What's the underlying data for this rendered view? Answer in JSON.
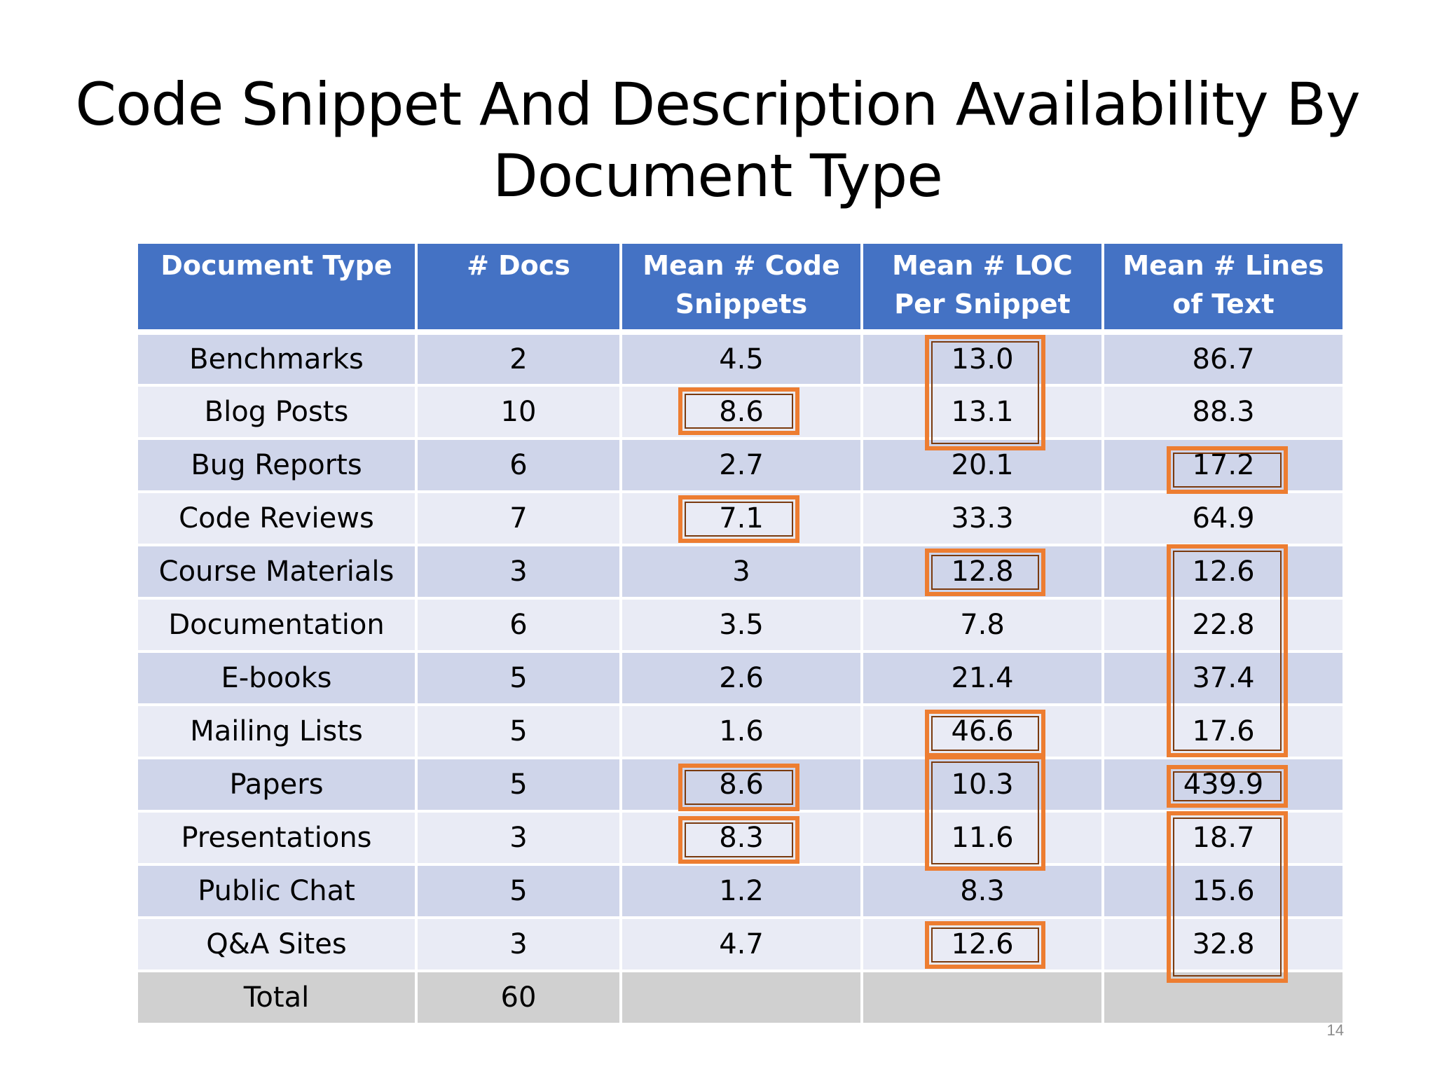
{
  "title": {
    "line1": "Code Snippet And Description Availability By",
    "line2": "Document Type"
  },
  "table": {
    "headers": [
      "Document Type",
      "# Docs",
      "Mean # Code Snippets",
      "Mean # LOC Per Snippet",
      "Mean # Lines of Text"
    ],
    "rows": [
      [
        "Benchmarks",
        "2",
        "4.5",
        "13.0",
        "86.7"
      ],
      [
        "Blog Posts",
        "10",
        "8.6",
        "13.1",
        "88.3"
      ],
      [
        "Bug Reports",
        "6",
        "2.7",
        "20.1",
        "17.2"
      ],
      [
        "Code Reviews",
        "7",
        "7.1",
        "33.3",
        "64.9"
      ],
      [
        "Course Materials",
        "3",
        "3",
        "12.8",
        "12.6"
      ],
      [
        "Documentation",
        "6",
        "3.5",
        "7.8",
        "22.8"
      ],
      [
        "E-books",
        "5",
        "2.6",
        "21.4",
        "37.4"
      ],
      [
        "Mailing Lists",
        "5",
        "1.6",
        "46.6",
        "17.6"
      ],
      [
        "Papers",
        "5",
        "8.6",
        "10.3",
        "439.9"
      ],
      [
        "Presentations",
        "3",
        "8.3",
        "11.6",
        "18.7"
      ],
      [
        "Public Chat",
        "5",
        "1.2",
        "8.3",
        "15.6"
      ],
      [
        "Q&A Sites",
        "3",
        "4.7",
        "12.6",
        "32.8"
      ]
    ],
    "total": [
      "Total",
      "60",
      "",
      "",
      ""
    ]
  },
  "highlight_color": "#ed7d31",
  "slide_number": "14"
}
